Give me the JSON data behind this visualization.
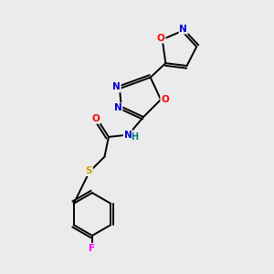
{
  "bg_color": "#ebebeb",
  "bond_color": "#000000",
  "atom_colors": {
    "N": "#0000cc",
    "O": "#ff0000",
    "S": "#ccaa00",
    "F": "#ff00ff",
    "H": "#008080",
    "C": "#000000"
  }
}
